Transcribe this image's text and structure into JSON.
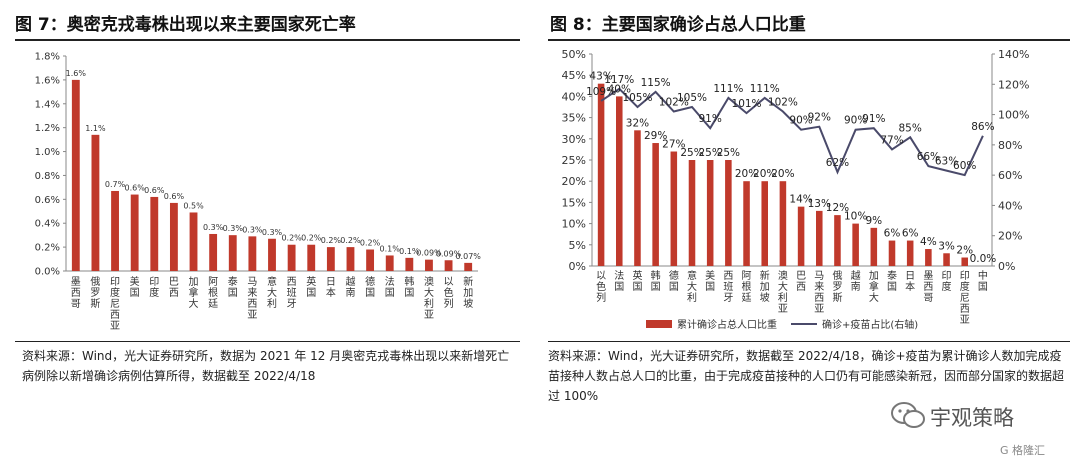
{
  "panel7": {
    "title": "图 7：奥密克戎毒株出现以来主要国家死亡率",
    "source": "资料来源：Wind，光大证券研究所，数据为 2021 年 12 月奥密克戎毒株出现以来新增死亡病例除以新增确诊病例估算所得，数据截至 2022/4/18"
  },
  "panel8": {
    "title": "图 8：主要国家确诊占总人口比重",
    "source": "资料来源：Wind，光大证券研究所，数据截至 2022/4/18，确诊+疫苗为累计确诊人数加完成疫苗接种人数占总人口的比重，由于完成疫苗接种的人口仍有可能感染新冠，因而部分国家的数据超过 100%"
  },
  "watermark": {
    "text": "宇观策略",
    "icon": "wechat-icon"
  },
  "logo": {
    "text": "G 格隆汇"
  },
  "colors": {
    "bar": "#c0392b",
    "line": "#4a4a6a",
    "axis": "#888888"
  },
  "chart_data": [
    {
      "type": "bar",
      "title": "",
      "categories": [
        "墨西哥",
        "俄罗斯",
        "印度尼西亚",
        "美国",
        "印度",
        "巴西",
        "加拿大",
        "阿根廷",
        "泰国",
        "马来西亚",
        "意大利",
        "西班牙",
        "英国",
        "日本",
        "越南",
        "德国",
        "法国",
        "韩国",
        "澳大利亚",
        "以色列",
        "新加坡"
      ],
      "values": [
        1.6,
        1.14,
        0.67,
        0.64,
        0.62,
        0.57,
        0.49,
        0.31,
        0.3,
        0.29,
        0.27,
        0.22,
        0.22,
        0.2,
        0.2,
        0.18,
        0.13,
        0.11,
        0.095,
        0.09,
        0.068
      ],
      "data_labels": [
        "1.6%",
        "1.1%",
        "0.7%",
        "0.6%",
        "0.6%",
        "0.6%",
        "0.5%",
        "0.3%",
        "0.3%",
        "0.3%",
        "0.3%",
        "0.2%",
        "0.2%",
        "0.2%",
        "0.2%",
        "0.2%",
        "0.1%",
        "0.1%",
        "0.09%",
        "0.09%",
        "0.07%"
      ],
      "yticks": [
        "0.0%",
        "0.2%",
        "0.4%",
        "0.6%",
        "0.8%",
        "1.0%",
        "1.2%",
        "1.4%",
        "1.6%",
        "1.8%"
      ],
      "ylim": [
        0,
        1.8
      ],
      "legend": "none"
    },
    {
      "type": "bar",
      "title": "",
      "categories": [
        "以色列",
        "法国",
        "英国",
        "韩国",
        "德国",
        "意大利",
        "美国",
        "西班牙",
        "阿根廷",
        "新加坡",
        "澳大利亚",
        "巴西",
        "马来西亚",
        "俄罗斯",
        "越南",
        "加拿大",
        "泰国",
        "日本",
        "墨西哥",
        "印度",
        "印度尼西亚",
        "中国"
      ],
      "series": [
        {
          "name": "累计确诊占总人口比重",
          "axis": "left",
          "values": [
            43,
            40,
            32,
            29,
            27,
            25,
            25,
            25,
            20,
            20,
            20,
            14,
            13,
            12,
            10,
            9,
            6,
            6,
            4,
            3,
            2,
            0.0
          ],
          "data_labels": [
            "43%",
            "40%",
            "32%",
            "29%",
            "27%",
            "25%",
            "25%",
            "25%",
            "20%",
            "20%",
            "20%",
            "14%",
            "13%",
            "12%",
            "10%",
            "9%",
            "6%",
            "6%",
            "4%",
            "3%",
            "2%",
            "0.0%"
          ]
        },
        {
          "name": "确诊+疫苗占比(右轴)",
          "axis": "right",
          "type": "line",
          "values": [
            109,
            117,
            105,
            115,
            102,
            105,
            91,
            111,
            101,
            111,
            102,
            90,
            92,
            62,
            90,
            91,
            77,
            85,
            66,
            63,
            60,
            86
          ],
          "data_labels": [
            "109%",
            "117%",
            "105%",
            "115%",
            "102%",
            "105%",
            "91%",
            "111%",
            "101%",
            "111%",
            "102%",
            "90%",
            "92%",
            "62%",
            "90%",
            "91%",
            "77%",
            "85%",
            "66%",
            "63%",
            "60%",
            "86%"
          ]
        }
      ],
      "yticks_left": [
        "0%",
        "5%",
        "10%",
        "15%",
        "20%",
        "25%",
        "30%",
        "35%",
        "40%",
        "45%",
        "50%"
      ],
      "ylim_left": [
        0,
        50
      ],
      "yticks_right": [
        "0%",
        "20%",
        "40%",
        "60%",
        "80%",
        "100%",
        "120%",
        "140%"
      ],
      "ylim_right": [
        0,
        140
      ],
      "legend": "bottom"
    }
  ]
}
